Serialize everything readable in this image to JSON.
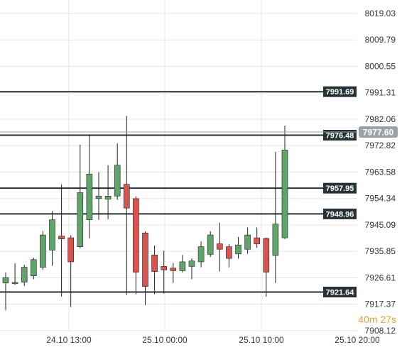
{
  "chart_data": {
    "type": "candlestick",
    "x_ticks": [
      "24.10 13:00",
      "25.10 00:00",
      "25.10 10:00",
      "25.10 20:00"
    ],
    "y_ticks": [
      "8019.03",
      "8009.79",
      "8000.55",
      "7991.31",
      "7982.06",
      "7972.82",
      "7963.58",
      "7954.34",
      "7945.09",
      "7935.85",
      "7926.61",
      "7917.37",
      "7908.12"
    ],
    "ylim": [
      7908.12,
      8019.03
    ],
    "current_price": {
      "value": 7977.6,
      "label": "7977.60",
      "color": "#9aa3a8"
    },
    "levels": [
      {
        "value": 7991.69,
        "label": "7991.69"
      },
      {
        "value": 7976.48,
        "label": "7976.48"
      },
      {
        "value": 7957.95,
        "label": "7957.95"
      },
      {
        "value": 7948.96,
        "label": "7948.96"
      },
      {
        "value": 7921.64,
        "label": "7921.64"
      }
    ],
    "candles": [
      {
        "o": 7924.8,
        "h": 7928.5,
        "l": 7915.3,
        "c": 7926.7
      },
      {
        "o": 7924.6,
        "h": 7931.7,
        "l": 7924.1,
        "c": 7925.0
      },
      {
        "o": 7925.1,
        "h": 7931.2,
        "l": 7923.8,
        "c": 7930.3
      },
      {
        "o": 7927.3,
        "h": 7933.6,
        "l": 7926.1,
        "c": 7933.0
      },
      {
        "o": 7930.3,
        "h": 7943.0,
        "l": 7929.4,
        "c": 7941.6
      },
      {
        "o": 7936.3,
        "h": 7949.9,
        "l": 7930.8,
        "c": 7946.9
      },
      {
        "o": 7941.2,
        "h": 7959.3,
        "l": 7920.1,
        "c": 7940.2
      },
      {
        "o": 7940.6,
        "h": 7941.5,
        "l": 7916.4,
        "c": 7932.2
      },
      {
        "o": 7937.5,
        "h": 7973.2,
        "l": 7936.9,
        "c": 7956.4
      },
      {
        "o": 7946.9,
        "h": 7976.8,
        "l": 7940.4,
        "c": 7962.9
      },
      {
        "o": 7954.3,
        "h": 7963.5,
        "l": 7946.9,
        "c": 7955.2
      },
      {
        "o": 7954.1,
        "h": 7966.0,
        "l": 7947.1,
        "c": 7955.2
      },
      {
        "o": 7955.2,
        "h": 7973.6,
        "l": 7953.9,
        "c": 7966.0
      },
      {
        "o": 7959.3,
        "h": 7983.2,
        "l": 7920.6,
        "c": 7951.0
      },
      {
        "o": 7954.3,
        "h": 7955.1,
        "l": 7920.8,
        "c": 7928.6
      },
      {
        "o": 7942.3,
        "h": 7942.9,
        "l": 7917.1,
        "c": 7923.6
      },
      {
        "o": 7934.6,
        "h": 7937.9,
        "l": 7920.9,
        "c": 7928.8
      },
      {
        "o": 7930.6,
        "h": 7936.1,
        "l": 7921.1,
        "c": 7929.4
      },
      {
        "o": 7930.0,
        "h": 7931.8,
        "l": 7924.8,
        "c": 7929.1
      },
      {
        "o": 7929.1,
        "h": 7934.6,
        "l": 7928.5,
        "c": 7932.2
      },
      {
        "o": 7930.6,
        "h": 7933.4,
        "l": 7926.1,
        "c": 7932.5
      },
      {
        "o": 7932.2,
        "h": 7939.3,
        "l": 7930.3,
        "c": 7937.5
      },
      {
        "o": 7934.8,
        "h": 7942.9,
        "l": 7933.9,
        "c": 7941.6
      },
      {
        "o": 7938.5,
        "h": 7945.9,
        "l": 7928.8,
        "c": 7936.6
      },
      {
        "o": 7937.5,
        "h": 7938.4,
        "l": 7930.3,
        "c": 7933.4
      },
      {
        "o": 7935.0,
        "h": 7940.9,
        "l": 7933.3,
        "c": 7938.1
      },
      {
        "o": 7936.6,
        "h": 7944.2,
        "l": 7935.0,
        "c": 7941.6
      },
      {
        "o": 7940.6,
        "h": 7944.2,
        "l": 7937.1,
        "c": 7938.5
      },
      {
        "o": 7940.4,
        "h": 7940.7,
        "l": 7920.0,
        "c": 7928.6
      },
      {
        "o": 7934.4,
        "h": 7970.6,
        "l": 7924.8,
        "c": 7945.4
      },
      {
        "o": 7940.6,
        "h": 7979.8,
        "l": 7940.2,
        "c": 7971.3
      }
    ],
    "colors": {
      "up": "#5fa56a",
      "down": "#d9534f",
      "level_line": "#263238",
      "grid": "#e6e6e6"
    }
  },
  "countdown": {
    "minutes": "40",
    "m_unit": "m",
    "seconds": "27",
    "s_unit": "s",
    "color": "#f0a030"
  }
}
